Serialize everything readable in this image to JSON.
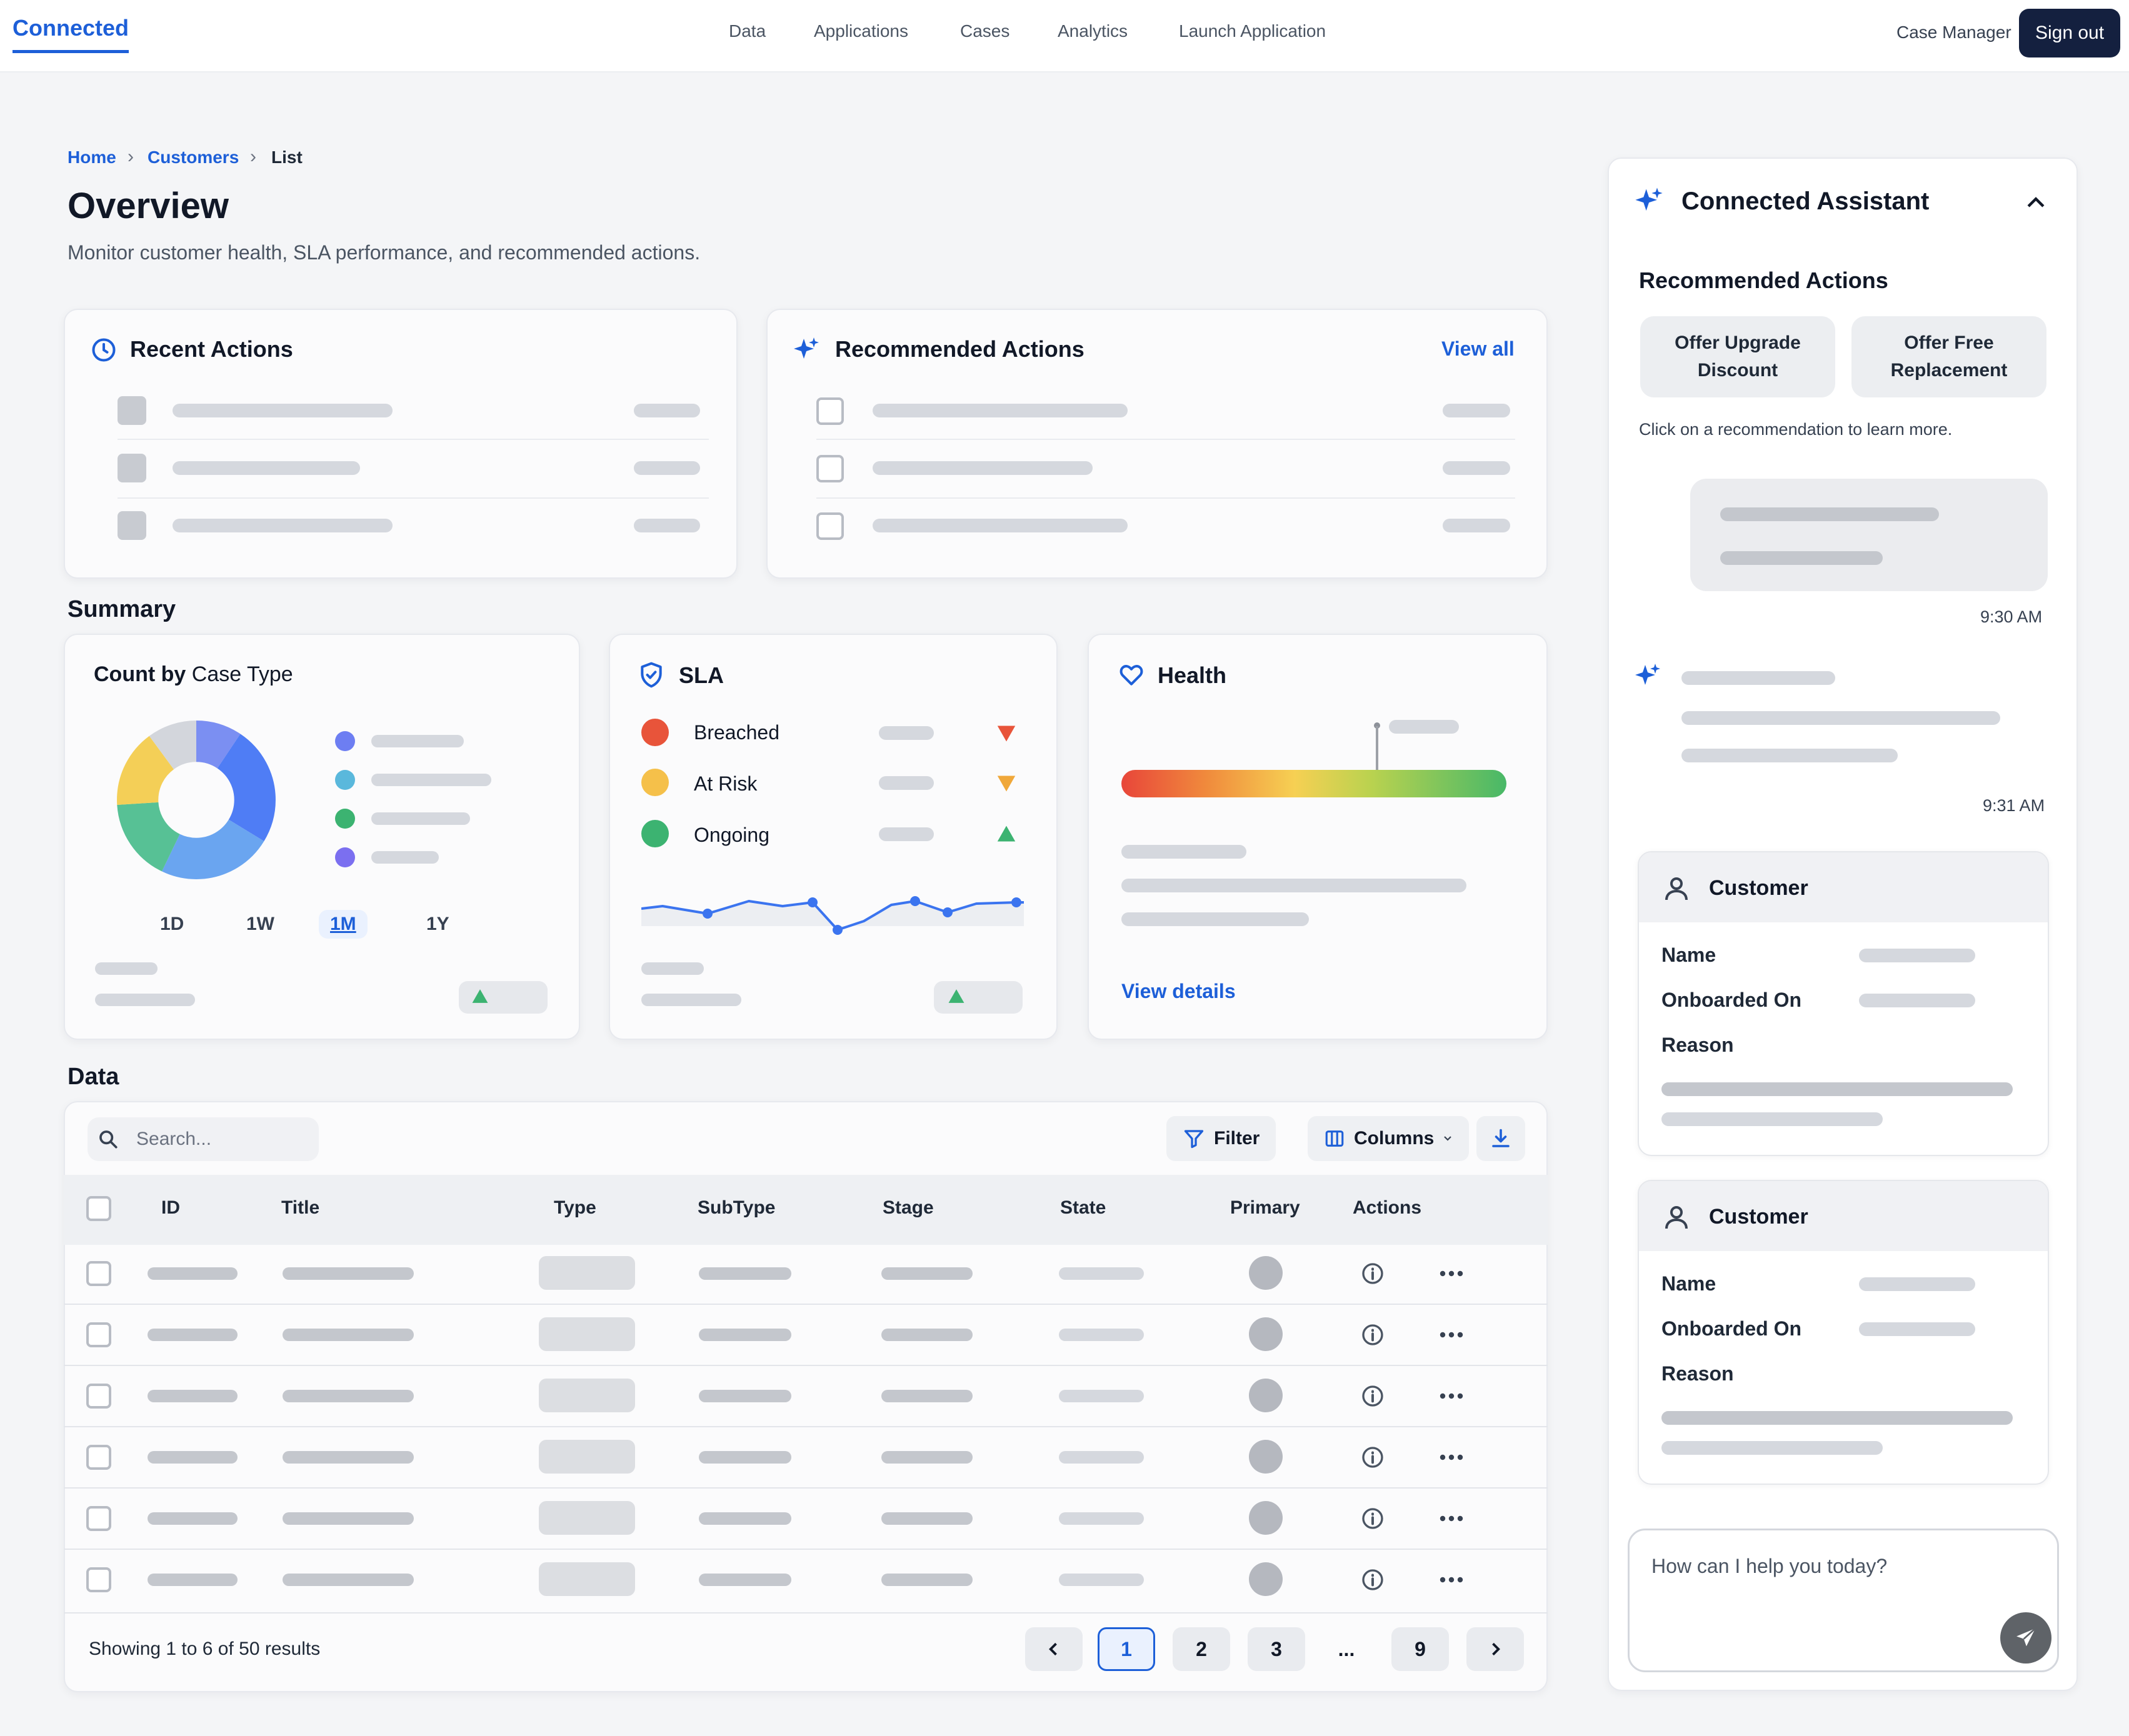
{
  "topbar": {
    "brand": "Connected",
    "nav": [
      "Data",
      "Applications",
      "Cases",
      "Analytics",
      "Launch Application"
    ],
    "role": "Case Manager",
    "sign_out": "Sign out"
  },
  "breadcrumb": [
    "Home",
    "Customers",
    "List"
  ],
  "page": {
    "title": "Overview",
    "subtitle": "Monitor customer health, SLA performance, and recommended actions."
  },
  "recent_actions": {
    "title": "Recent Actions",
    "icon": "clock-icon"
  },
  "recommended_actions": {
    "title": "Recommended Actions",
    "view_all": "View all",
    "icon": "sparkle-icon"
  },
  "summary": {
    "title": "Summary",
    "count_by": {
      "title_a": "Count by",
      "title_b": "Case Type",
      "ranges": [
        "1D",
        "1W",
        "1M",
        "1Y"
      ],
      "active_range": "1M"
    },
    "sla": {
      "title": "SLA",
      "rows": [
        {
          "label": "Breached",
          "color": "#e8543a",
          "trend": "down"
        },
        {
          "label": "At Risk",
          "color": "#f5c04a",
          "trend": "down"
        },
        {
          "label": "Ongoing",
          "color": "#3cb371",
          "trend": "up"
        }
      ]
    },
    "health": {
      "title": "Health",
      "view_details": "View details"
    }
  },
  "data": {
    "title": "Data",
    "search_placeholder": "Search...",
    "filter": "Filter",
    "columns": "Columns",
    "headers": [
      "ID",
      "Title",
      "Type",
      "SubType",
      "Stage",
      "State",
      "Primary",
      "Actions"
    ],
    "footer": "Showing 1 to 6 of 50 results",
    "pages": [
      "1",
      "2",
      "3",
      "...",
      "9"
    ],
    "current_page": "1"
  },
  "assistant": {
    "title": "Connected Assistant",
    "section": "Recommended Actions",
    "recommendations": [
      "Offer Upgrade Discount",
      "Offer Free Replacement"
    ],
    "hint": "Click on a recommendation to learn more.",
    "time_user": "9:30 AM",
    "time_bot": "9:31 AM",
    "customer_cards": [
      {
        "title": "Customer",
        "fields": [
          "Name",
          "Onboarded On",
          "Reason"
        ]
      },
      {
        "title": "Customer",
        "fields": [
          "Name",
          "Onboarded On",
          "Reason"
        ]
      }
    ],
    "input_placeholder": "How can I help you today?"
  },
  "colors": {
    "accent": "#1d5fd8",
    "sign_out_bg": "#14203f"
  }
}
